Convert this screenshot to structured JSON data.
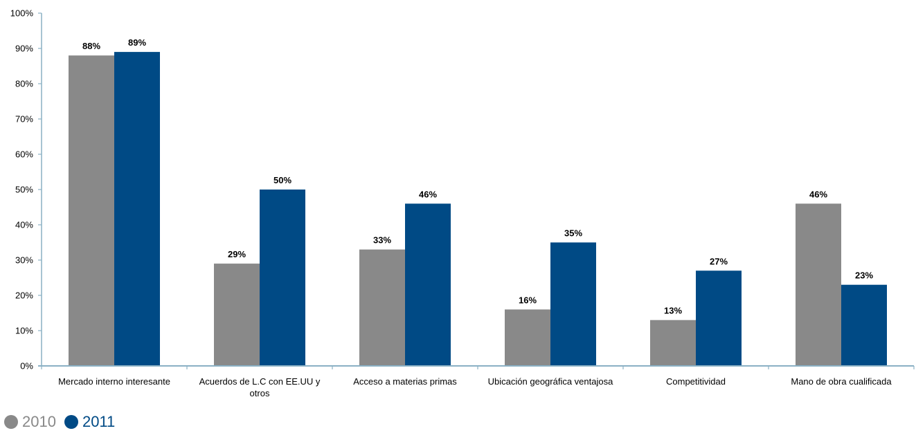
{
  "chart_data": {
    "type": "bar",
    "title": "",
    "xlabel": "",
    "ylabel": "",
    "ylim": [
      0,
      100
    ],
    "y_ticks": [
      "0%",
      "10%",
      "20%",
      "30%",
      "40%",
      "50%",
      "60%",
      "70%",
      "80%",
      "90%",
      "100%"
    ],
    "categories": [
      [
        "Mercado interno interesante"
      ],
      [
        "Acuerdos de L.C con EE.UU y",
        "otros"
      ],
      [
        "Acceso a materias primas"
      ],
      [
        "Ubicación geográfica ventajosa"
      ],
      [
        "Competitividad"
      ],
      [
        "Mano de obra cualificada"
      ]
    ],
    "series": [
      {
        "name": "2010",
        "color": "#898989",
        "values": [
          88,
          29,
          33,
          16,
          13,
          46
        ]
      },
      {
        "name": "2011",
        "color": "#004a85",
        "values": [
          89,
          50,
          46,
          35,
          27,
          23
        ]
      }
    ],
    "value_suffix": "%",
    "grid": false,
    "legend_position": "bottom-left"
  }
}
